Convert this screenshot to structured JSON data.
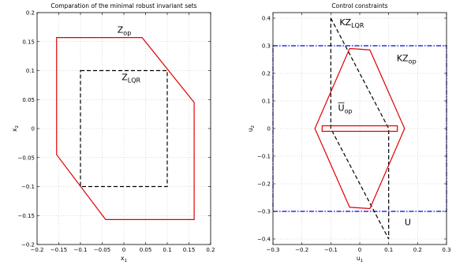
{
  "chart_data": [
    {
      "type": "line",
      "title": "Comparation of the minimal robust invariant sets",
      "xlabel": "x",
      "xlabel_sub": "1",
      "ylabel": "x",
      "ylabel_sub": "2",
      "xlim": [
        -0.2,
        0.2
      ],
      "ylim": [
        -0.2,
        0.2
      ],
      "xticks": [
        -0.2,
        -0.15,
        -0.1,
        -0.05,
        0,
        0.05,
        0.1,
        0.15,
        0.2
      ],
      "yticks": [
        -0.2,
        -0.15,
        -0.1,
        -0.05,
        0,
        0.05,
        0.1,
        0.15,
        0.2
      ],
      "xtick_labels": [
        "−0.2",
        "−0.15",
        "−0.1",
        "−0.05",
        "0",
        "0.05",
        "0.1",
        "0.15",
        "0.2"
      ],
      "ytick_labels": [
        "−0.2",
        "−0.15",
        "−0.1",
        "−0.05",
        "0",
        "0.05",
        "0.1",
        "0.15",
        "0.2"
      ],
      "grid": true,
      "series": [
        {
          "color": "#e00000",
          "dash": "solid",
          "closed": true,
          "x": [
            -0.155,
            0.042,
            0.162,
            0.162,
            -0.042,
            -0.155
          ],
          "y": [
            0.157,
            0.157,
            0.045,
            -0.157,
            -0.157,
            -0.045
          ]
        },
        {
          "color": "#000000",
          "dash": "dashed",
          "closed": true,
          "x": [
            -0.1,
            0.1,
            0.1,
            -0.1
          ],
          "y": [
            0.1,
            0.1,
            -0.1,
            -0.1
          ]
        }
      ],
      "annotations": [
        {
          "text": "Z",
          "sub": "op",
          "x": -0.015,
          "y": 0.165
        },
        {
          "text": "Z",
          "sub": "LQR",
          "x": -0.005,
          "y": 0.084
        }
      ]
    },
    {
      "type": "line",
      "title": "Control constraints",
      "xlabel": "u",
      "xlabel_sub": "1",
      "ylabel": "u",
      "ylabel_sub": "2",
      "xlim": [
        -0.3,
        0.3
      ],
      "ylim": [
        -0.42,
        0.42
      ],
      "xticks": [
        -0.3,
        -0.2,
        -0.1,
        0,
        0.1,
        0.2,
        0.3
      ],
      "yticks": [
        -0.4,
        -0.3,
        -0.2,
        -0.1,
        0,
        0.1,
        0.2,
        0.3,
        0.4
      ],
      "xtick_labels": [
        "−0.3",
        "−0.2",
        "−0.1",
        "0",
        "0.1",
        "0.2",
        "0.3"
      ],
      "ytick_labels": [
        "−0.4",
        "−0.3",
        "−0.2",
        "−0.1",
        "0",
        "0.1",
        "0.2",
        "0.3",
        "0.4"
      ],
      "grid": true,
      "series": [
        {
          "color": "#0000ee",
          "dash": "dashdot",
          "closed": true,
          "x": [
            -0.3,
            0.3,
            0.3,
            -0.3
          ],
          "y": [
            0.3,
            0.3,
            -0.3,
            -0.3
          ]
        },
        {
          "color": "#000000",
          "dash": "dashed",
          "closed": true,
          "x": [
            -0.1,
            0.1,
            0.1,
            -0.1
          ],
          "y": [
            0.4,
            0,
            -0.4,
            0
          ]
        },
        {
          "color": "#e00000",
          "dash": "solid",
          "closed": true,
          "x": [
            -0.035,
            0.035,
            0.155,
            0.035,
            -0.035,
            -0.155
          ],
          "y": [
            0.29,
            0.285,
            0,
            -0.29,
            -0.285,
            0
          ]
        },
        {
          "color": "#e00000",
          "dash": "solid",
          "closed": true,
          "x": [
            -0.13,
            0.13,
            0.13,
            -0.13
          ],
          "y": [
            0.01,
            0.01,
            -0.01,
            -0.01
          ]
        }
      ],
      "annotations": [
        {
          "text": "KZ",
          "sub": "LQR",
          "x": -0.07,
          "y": 0.375
        },
        {
          "text": "KZ",
          "sub": "op",
          "x": 0.128,
          "y": 0.245
        },
        {
          "text": "U",
          "sub": "op",
          "bar": true,
          "x": -0.075,
          "y": 0.065
        },
        {
          "text": "U",
          "sub": "",
          "x": 0.155,
          "y": -0.35
        }
      ]
    }
  ]
}
